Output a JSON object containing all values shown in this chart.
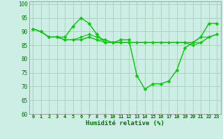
{
  "title": "",
  "xlabel": "Humidité relative (%)",
  "ylabel": "",
  "background_color": "#cceee4",
  "grid_color": "#aaccbb",
  "line_color": "#00cc00",
  "xlim": [
    -0.5,
    23.5
  ],
  "ylim": [
    60,
    101
  ],
  "yticks": [
    60,
    65,
    70,
    75,
    80,
    85,
    90,
    95,
    100
  ],
  "xticks": [
    0,
    1,
    2,
    3,
    4,
    5,
    6,
    7,
    8,
    9,
    10,
    11,
    12,
    13,
    14,
    15,
    16,
    17,
    18,
    19,
    20,
    21,
    22,
    23
  ],
  "series": [
    [
      91,
      90,
      88,
      88,
      88,
      92,
      95,
      93,
      89,
      86,
      86,
      87,
      87,
      74,
      69,
      71,
      71,
      72,
      76,
      84,
      86,
      88,
      93,
      93
    ],
    [
      91,
      90,
      88,
      88,
      87,
      87,
      88,
      89,
      88,
      87,
      86,
      86,
      86,
      86,
      86,
      86,
      86,
      86,
      86,
      86,
      86,
      88,
      88,
      89
    ],
    [
      91,
      90,
      88,
      88,
      87,
      87,
      87,
      88,
      87,
      87,
      86,
      86,
      86,
      86,
      86,
      86,
      86,
      86,
      86,
      86,
      86,
      86,
      88,
      89
    ],
    [
      91,
      90,
      88,
      88,
      87,
      87,
      87,
      88,
      87,
      86,
      86,
      86,
      86,
      86,
      86,
      86,
      86,
      86,
      86,
      86,
      85,
      86,
      88,
      89
    ]
  ]
}
